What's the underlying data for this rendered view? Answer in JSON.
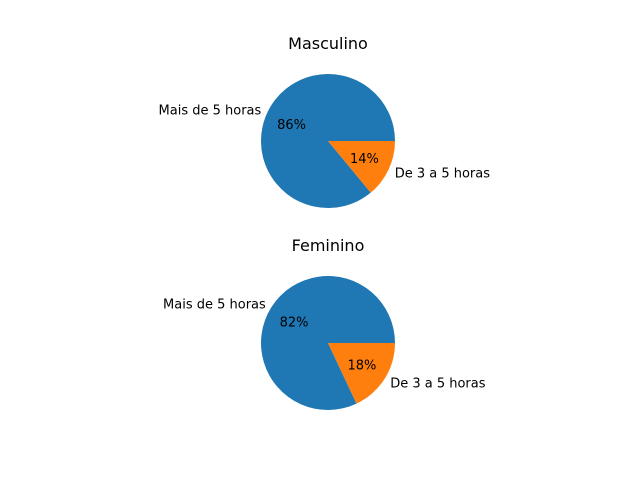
{
  "chart_data": [
    {
      "type": "pie",
      "title": "Masculino",
      "categories": [
        "Mais de 5 horas",
        "De 3 a 5 horas"
      ],
      "values": [
        86,
        14
      ],
      "value_labels": [
        "86%",
        "14%"
      ],
      "colors": [
        "#1f77b4",
        "#ff7f0e"
      ]
    },
    {
      "type": "pie",
      "title": "Feminino",
      "categories": [
        "Mais de 5 horas",
        "De 3 a 5 horas"
      ],
      "values": [
        82,
        18
      ],
      "value_labels": [
        "82%",
        "18%"
      ],
      "colors": [
        "#1f77b4",
        "#ff7f0e"
      ]
    }
  ]
}
